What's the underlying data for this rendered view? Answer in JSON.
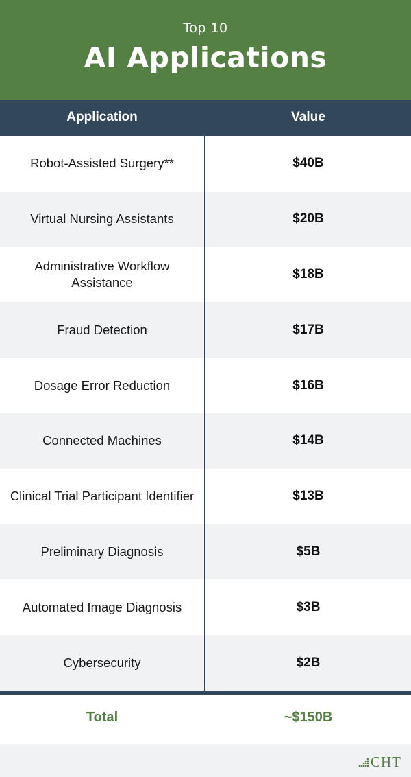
{
  "header": {
    "subtitle": "Top 10",
    "title": "AI Applications"
  },
  "columns": {
    "application": "Application",
    "value": "Value"
  },
  "colors": {
    "accent_green": "#548043",
    "header_navy": "#33475b",
    "stripe": "#f0f2f4"
  },
  "chart_data": {
    "type": "table",
    "title": "AI Applications",
    "subtitle": "Top 10",
    "columns": [
      "Application",
      "Value"
    ],
    "rows": [
      {
        "application": "Robot-Assisted Surgery**",
        "value": "$40B"
      },
      {
        "application": "Virtual Nursing Assistants",
        "value": "$20B"
      },
      {
        "application": "Administrative Workflow Assistance",
        "value": "$18B"
      },
      {
        "application": "Fraud Detection",
        "value": "$17B"
      },
      {
        "application": "Dosage Error Reduction",
        "value": "$16B"
      },
      {
        "application": "Connected Machines",
        "value": "$14B"
      },
      {
        "application": "Clinical Trial Participant Identifier",
        "value": "$13B"
      },
      {
        "application": "Preliminary Diagnosis",
        "value": "$5B"
      },
      {
        "application": "Automated Image Diagnosis",
        "value": "$3B"
      },
      {
        "application": "Cybersecurity",
        "value": "$2B"
      }
    ],
    "total": {
      "label": "Total",
      "value": "~$150B"
    }
  },
  "footer": {
    "logo_text": "CHT",
    "logo_icon": "dots-triangle-icon"
  }
}
